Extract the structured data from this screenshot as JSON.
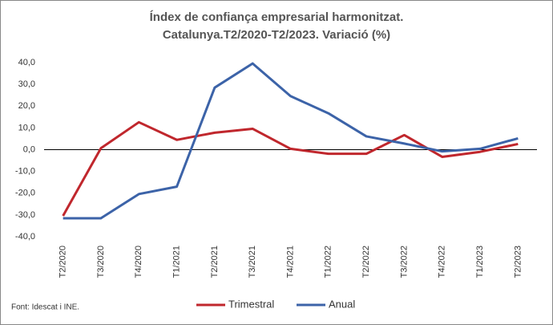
{
  "chart_data": {
    "type": "line",
    "title": "Índex de confiança empresarial harmonitzat.",
    "subtitle": "Catalunya.T2/2020-T2/2023. Variació (%)",
    "categories": [
      "T2/2020",
      "T3/2020",
      "T4/2020",
      "T1/2021",
      "T2/2021",
      "T3/2021",
      "T4/2021",
      "T1/2022",
      "T2/2022",
      "T3/2022",
      "T4/2022",
      "T1/2023",
      "T2/2023"
    ],
    "series": [
      {
        "name": "Trimestral",
        "color": "#c0272d",
        "values": [
          -30.4,
          0.7,
          12.6,
          4.5,
          7.8,
          9.6,
          0.4,
          -1.9,
          -1.9,
          6.7,
          -3.3,
          -1.0,
          2.6
        ]
      },
      {
        "name": "Anual",
        "color": "#3c63a8",
        "values": [
          -31.5,
          -31.5,
          -20.4,
          -17.0,
          28.5,
          39.6,
          24.6,
          16.7,
          6.1,
          2.8,
          -0.8,
          0.4,
          5.2
        ]
      }
    ],
    "ylim": [
      -40,
      40
    ],
    "yticks": [
      {
        "value": -40,
        "label": "-40,0"
      },
      {
        "value": -30,
        "label": "-30,0"
      },
      {
        "value": -20,
        "label": "-20,0"
      },
      {
        "value": -10,
        "label": "-10,0"
      },
      {
        "value": 0,
        "label": "0,0"
      },
      {
        "value": 10,
        "label": "10,0"
      },
      {
        "value": 20,
        "label": "20,0"
      },
      {
        "value": 30,
        "label": "30,0"
      },
      {
        "value": 40,
        "label": "40,0"
      }
    ],
    "grid": false,
    "source": "Font: Idescat i INE."
  }
}
